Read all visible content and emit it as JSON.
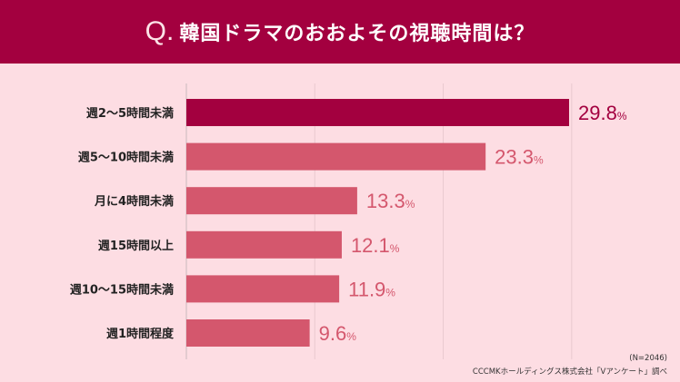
{
  "header": {
    "q_mark": "Q.",
    "title": "韓国ドラマのおおよその視聴時間は？"
  },
  "chart_data": {
    "type": "bar",
    "orientation": "horizontal",
    "title": "韓国ドラマのおおよその視聴時間は？",
    "categories": [
      "週2～5時間未満",
      "週5～10時間未満",
      "月に4時間未満",
      "週15時間以上",
      "週10～15時間未満",
      "週1時間程度"
    ],
    "values": [
      29.8,
      23.3,
      13.3,
      12.1,
      11.9,
      9.6
    ],
    "value_labels": [
      "29.8",
      "23.3",
      "13.3",
      "12.1",
      "11.9",
      "9.6"
    ],
    "unit": "%",
    "xlim": [
      0,
      30
    ],
    "grid": true,
    "grid_step": 10,
    "colors": {
      "highlight": "#a3003f",
      "default": "#d4576d",
      "label_highlight": "#a3003f",
      "label_default": "#d4576d"
    }
  },
  "footer": {
    "sample": "(N=2046)",
    "source": "CCCMKホールディングス株式会社「Vアンケート」調べ"
  }
}
